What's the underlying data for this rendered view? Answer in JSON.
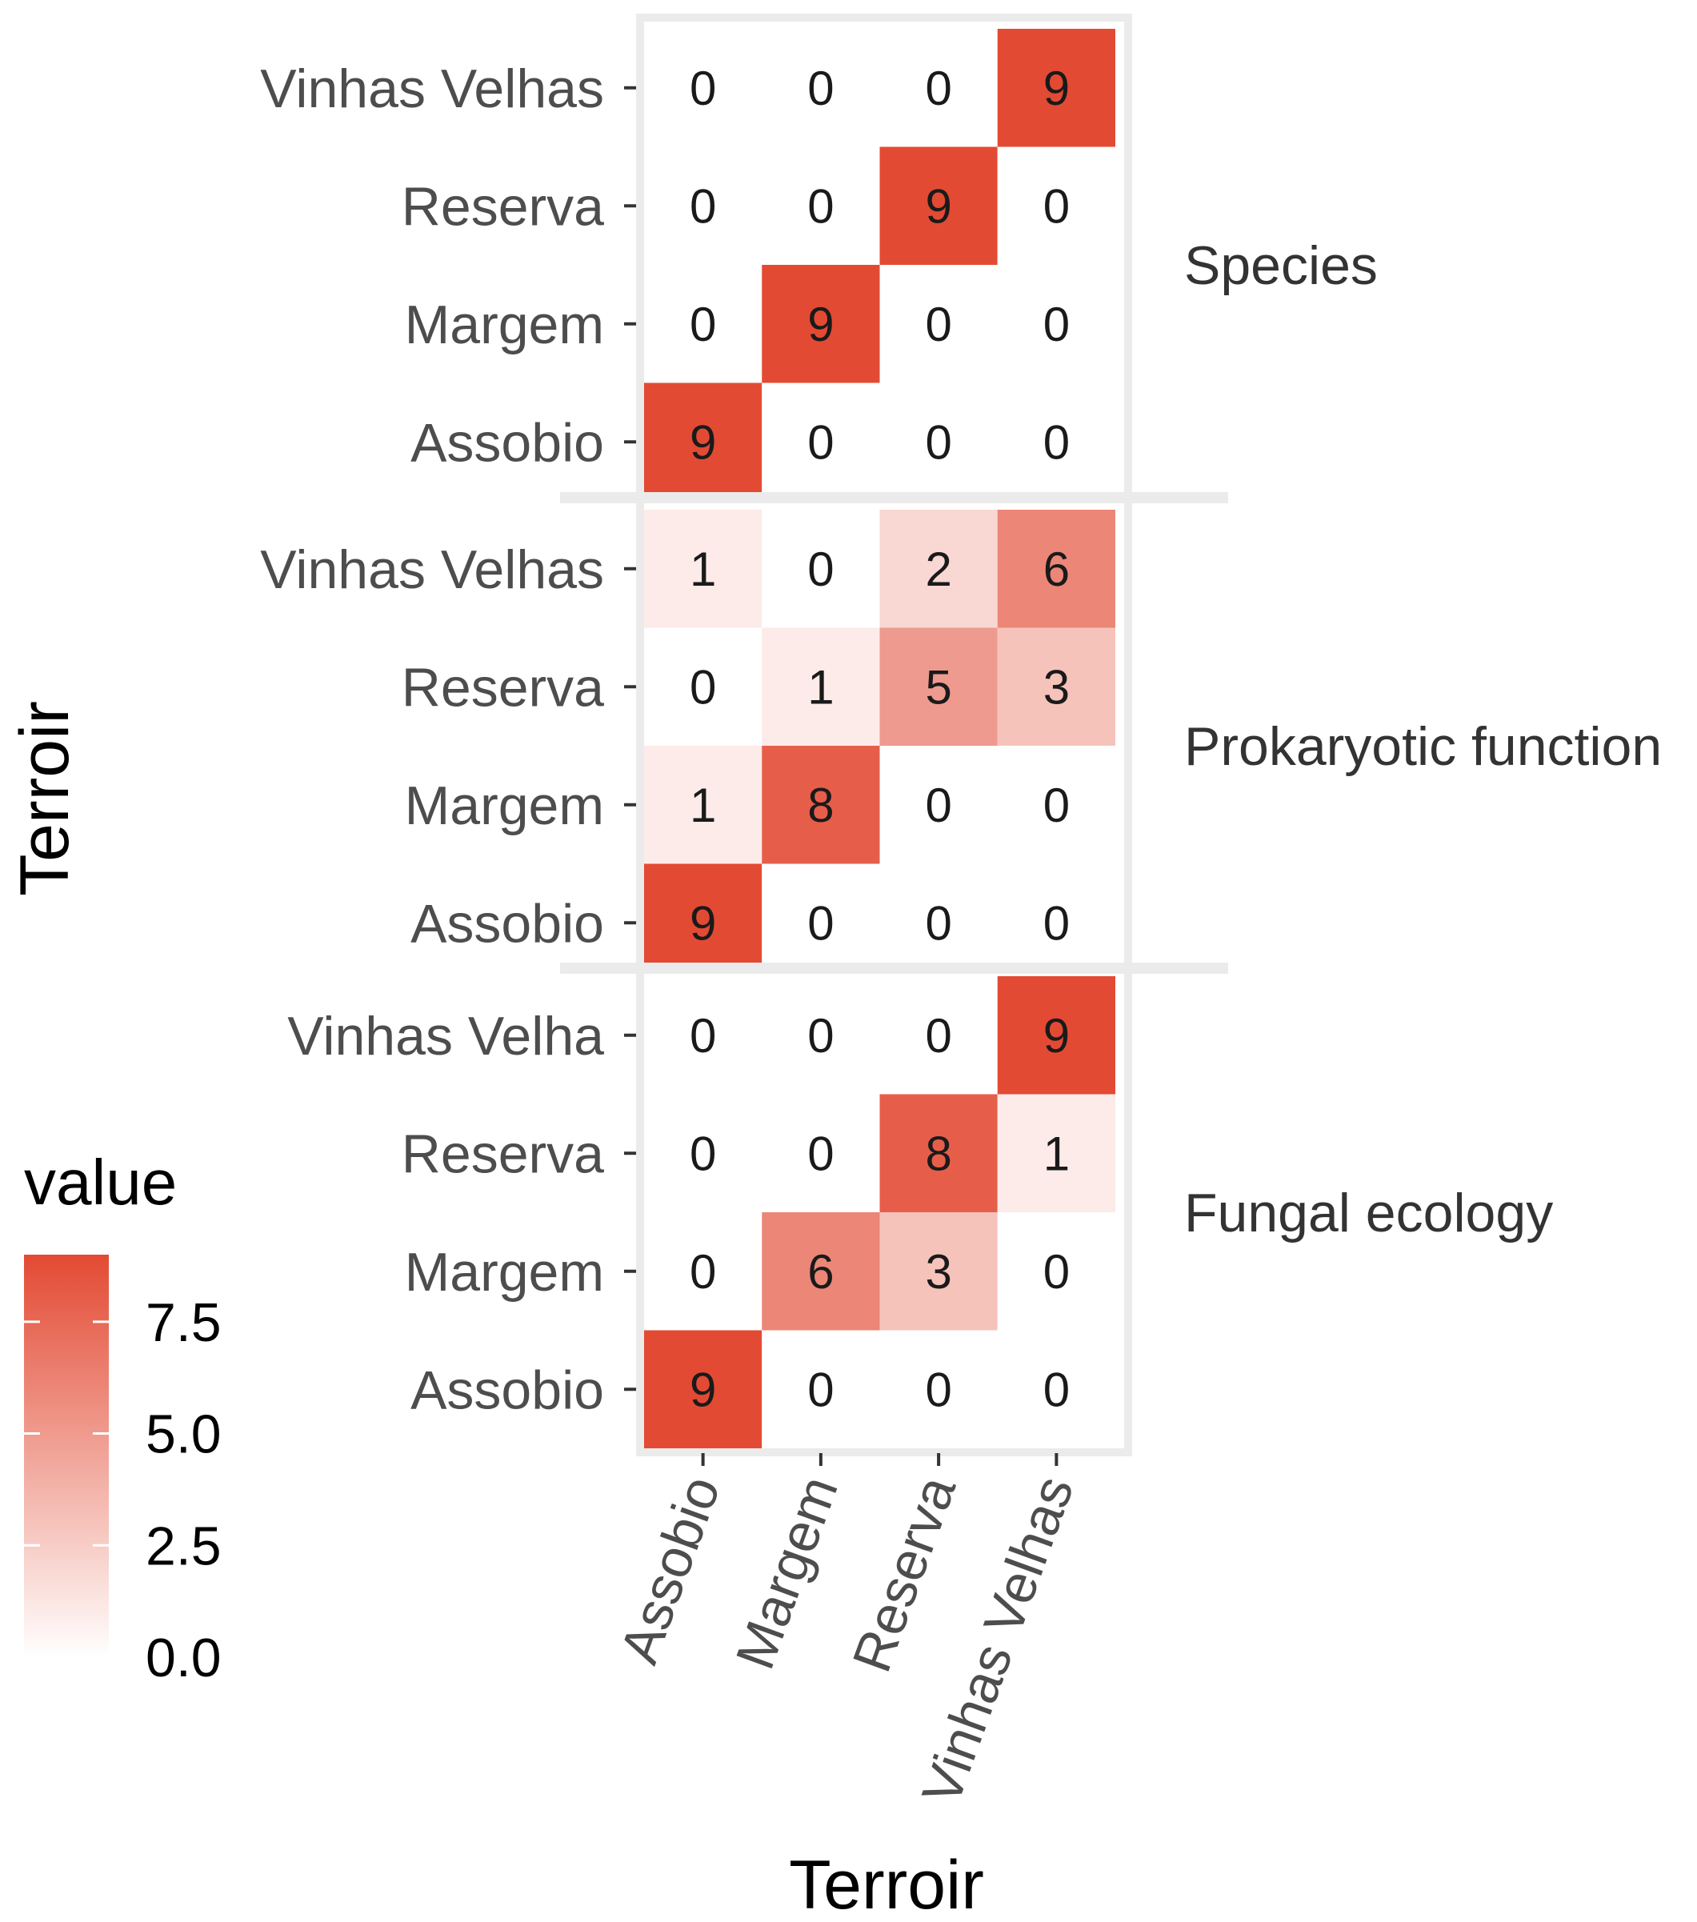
{
  "chart_data": {
    "type": "heatmap",
    "xlabel": "Terroir",
    "ylabel": "Terroir",
    "x_categories": [
      "Assobio",
      "Margem",
      "Reserva",
      "Vinhas Velhas"
    ],
    "colors": {
      "low": "#ffffff",
      "high": "#e34a33"
    },
    "legend": {
      "title": "value",
      "ticks": [
        "0.0",
        "2.5",
        "5.0",
        "7.5"
      ],
      "tick_values": [
        0,
        2.5,
        5,
        7.5
      ],
      "range": [
        0,
        9
      ],
      "position": "left"
    },
    "panels": [
      {
        "label": "Species",
        "rows": [
          "Vinhas Velhas",
          "Reserva",
          "Margem",
          "Assobio"
        ],
        "values": [
          [
            0,
            0,
            0,
            9
          ],
          [
            0,
            0,
            9,
            0
          ],
          [
            0,
            9,
            0,
            0
          ],
          [
            9,
            0,
            0,
            0
          ]
        ]
      },
      {
        "label": "Prokaryotic function",
        "rows": [
          "Vinhas Velhas",
          "Reserva",
          "Margem",
          "Assobio"
        ],
        "values": [
          [
            1,
            0,
            2,
            6
          ],
          [
            0,
            1,
            5,
            3
          ],
          [
            1,
            8,
            0,
            0
          ],
          [
            9,
            0,
            0,
            0
          ]
        ]
      },
      {
        "label": "Fungal ecology",
        "rows": [
          "Vinhas Velha",
          "Reserva",
          "Margem",
          "Assobio"
        ],
        "values": [
          [
            0,
            0,
            0,
            9
          ],
          [
            0,
            0,
            8,
            1
          ],
          [
            0,
            6,
            3,
            0
          ],
          [
            9,
            0,
            0,
            0
          ]
        ]
      }
    ]
  }
}
